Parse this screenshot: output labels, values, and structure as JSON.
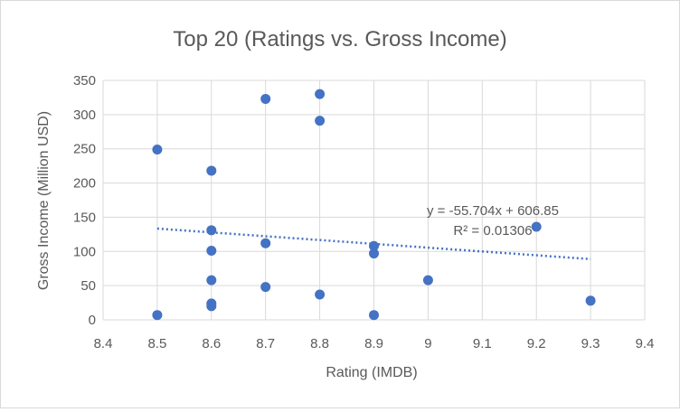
{
  "chart_data": {
    "type": "scatter",
    "title": "Top 20 (Ratings vs. Gross Income)",
    "xlabel": "Rating (IMDB)",
    "ylabel": "Gross Income (Million USD)",
    "xlim": [
      8.4,
      9.4
    ],
    "ylim": [
      0,
      350
    ],
    "xticks": [
      8.4,
      8.5,
      8.6,
      8.7,
      8.8,
      8.9,
      9.0,
      9.1,
      9.2,
      9.3,
      9.4
    ],
    "xtick_labels": [
      "8.4",
      "8.5",
      "8.6",
      "8.7",
      "8.8",
      "8.9",
      "9",
      "9.1",
      "9.2",
      "9.3",
      "9.4"
    ],
    "yticks": [
      0,
      50,
      100,
      150,
      200,
      250,
      300,
      350
    ],
    "ytick_labels": [
      "0",
      "50",
      "100",
      "150",
      "200",
      "250",
      "300",
      "350"
    ],
    "grid": true,
    "legend": "none",
    "point_color": "#4472c4",
    "points": [
      {
        "x": 8.5,
        "y": 249
      },
      {
        "x": 8.5,
        "y": 7
      },
      {
        "x": 8.6,
        "y": 218
      },
      {
        "x": 8.6,
        "y": 131
      },
      {
        "x": 8.6,
        "y": 101
      },
      {
        "x": 8.6,
        "y": 58
      },
      {
        "x": 8.6,
        "y": 24
      },
      {
        "x": 8.6,
        "y": 20
      },
      {
        "x": 8.7,
        "y": 323
      },
      {
        "x": 8.7,
        "y": 112
      },
      {
        "x": 8.7,
        "y": 48
      },
      {
        "x": 8.8,
        "y": 330
      },
      {
        "x": 8.8,
        "y": 291
      },
      {
        "x": 8.8,
        "y": 37
      },
      {
        "x": 8.9,
        "y": 108
      },
      {
        "x": 8.9,
        "y": 97
      },
      {
        "x": 8.9,
        "y": 7
      },
      {
        "x": 9.0,
        "y": 58
      },
      {
        "x": 9.2,
        "y": 136
      },
      {
        "x": 9.3,
        "y": 28
      }
    ],
    "trendline": {
      "type": "linear",
      "slope": -55.704,
      "intercept": 606.85,
      "x_range": [
        8.5,
        9.3
      ],
      "equation_label": "y = -55.704x + 606.85",
      "r2_label": "R² = 0.01306",
      "color": "#4472c4",
      "style": "dotted"
    }
  }
}
